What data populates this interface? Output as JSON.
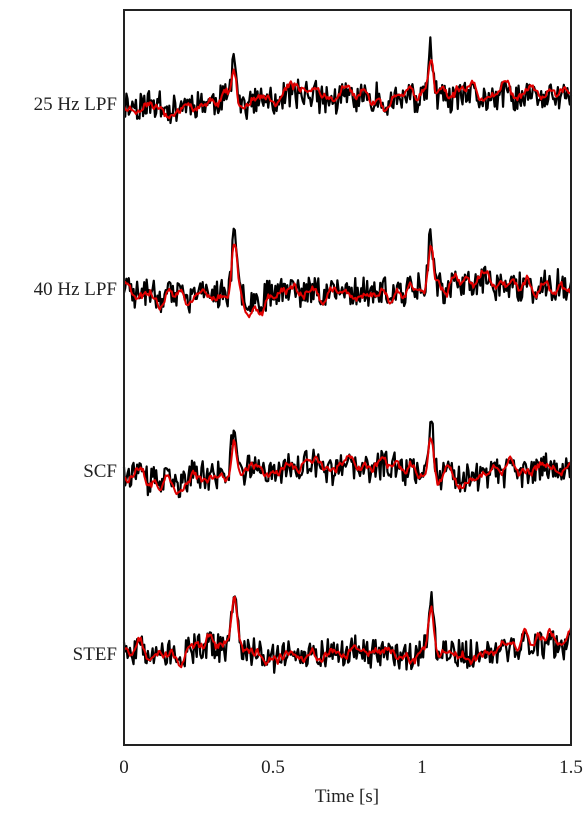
{
  "chart_data": {
    "type": "line",
    "title": "",
    "xlabel": "Time [s]",
    "ylabel": "",
    "xlim": [
      0,
      1.5
    ],
    "xticks": [
      {
        "value": 0,
        "label": "0"
      },
      {
        "value": 0.5,
        "label": "0.5"
      },
      {
        "value": 1,
        "label": "1"
      },
      {
        "value": 1.5,
        "label": "1.5"
      }
    ],
    "grid": false,
    "legend": "none",
    "colors": {
      "raw": "#000000",
      "filtered": "#e00000",
      "frame": "#222222"
    },
    "rows": [
      {
        "label": "25 Hz LPF",
        "seed": 11
      },
      {
        "label": "40 Hz LPF",
        "seed": 23
      },
      {
        "label": "SCF",
        "seed": 37
      },
      {
        "label": "STEF",
        "seed": 51
      }
    ],
    "peaks_s": [
      0.37,
      1.03
    ],
    "sample_rate_hz": 250
  }
}
